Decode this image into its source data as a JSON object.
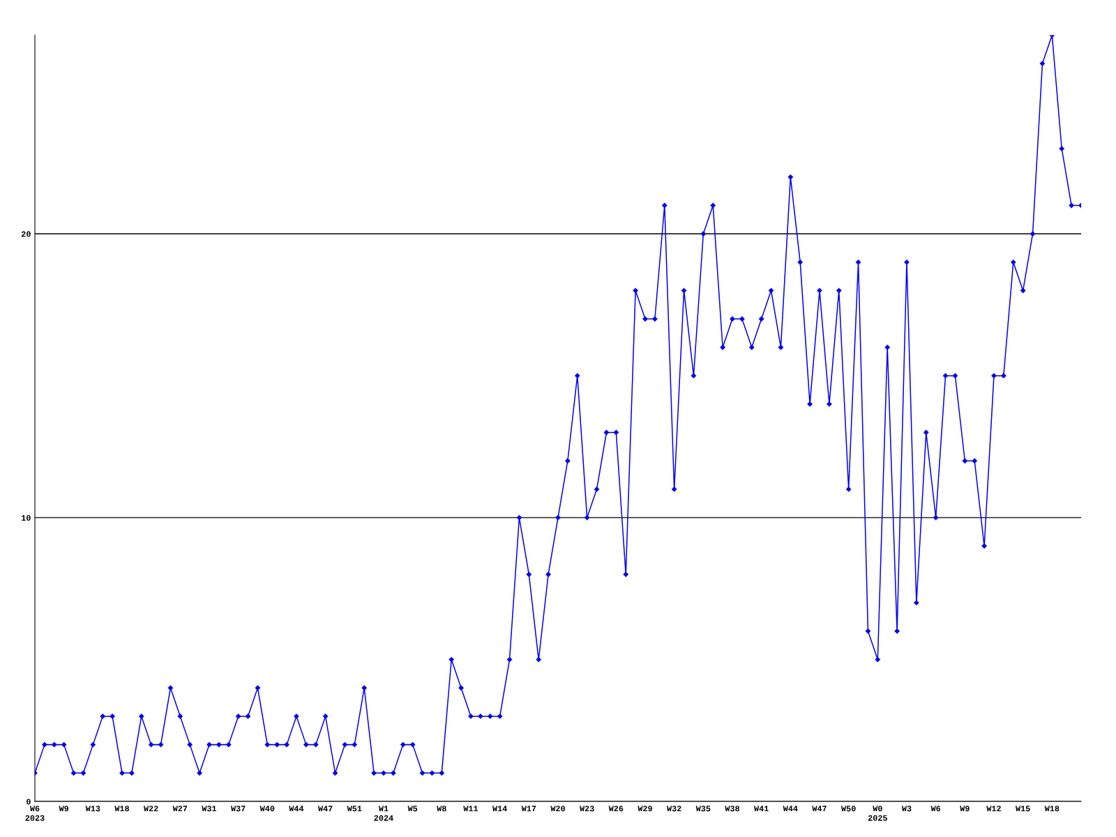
{
  "chart_data": {
    "type": "line",
    "categories": [
      "W6\n2023",
      null,
      null,
      "W9",
      null,
      null,
      "W13",
      null,
      null,
      "W18",
      null,
      null,
      "W22",
      null,
      null,
      "W27",
      null,
      null,
      "W31",
      null,
      null,
      "W37",
      null,
      null,
      "W40",
      null,
      null,
      "W44",
      null,
      null,
      "W47",
      null,
      null,
      "W51",
      null,
      null,
      "W1\n2024",
      null,
      null,
      "W5",
      null,
      null,
      "W8",
      null,
      null,
      "W11",
      null,
      null,
      "W14",
      null,
      null,
      "W17",
      null,
      null,
      "W20",
      null,
      null,
      "W23",
      null,
      null,
      "W26",
      null,
      null,
      "W29",
      null,
      null,
      "W32",
      null,
      null,
      "W35",
      null,
      null,
      "W38",
      null,
      null,
      "W41",
      null,
      null,
      "W44",
      null,
      null,
      "W47",
      null,
      null,
      "W50",
      null,
      null,
      "W0\n2025",
      null,
      null,
      "W3",
      null,
      null,
      "W6",
      null,
      null,
      "W9",
      null,
      null,
      "W12",
      null,
      null,
      "W15",
      null,
      null,
      "W18",
      null,
      null,
      null
    ],
    "series": [
      {
        "color": "#0000ff",
        "values": [
          1,
          2,
          2,
          2,
          1,
          1,
          2,
          3,
          3,
          1,
          1,
          3,
          2,
          2,
          4,
          3,
          2,
          1,
          2,
          2,
          2,
          3,
          3,
          4,
          2,
          2,
          2,
          3,
          2,
          2,
          3,
          1,
          2,
          2,
          4,
          1,
          1,
          1,
          2,
          2,
          1,
          1,
          1,
          5,
          4,
          3,
          3,
          3,
          3,
          5,
          10,
          8,
          5,
          8,
          10,
          12,
          15,
          10,
          11,
          13,
          13,
          8,
          18,
          17,
          17,
          21,
          11,
          18,
          15,
          20,
          21,
          16,
          17,
          17,
          16,
          17,
          18,
          16,
          22,
          19,
          14,
          18,
          14,
          18,
          11,
          19,
          6,
          5,
          16,
          6,
          19,
          7,
          13,
          10,
          15,
          15,
          12,
          12,
          9,
          15,
          15,
          19,
          18,
          20,
          26,
          27,
          23,
          21,
          21
        ]
      }
    ],
    "ylim": [
      0,
      27
    ],
    "yticks": [
      0,
      10,
      20
    ],
    "grid": "y",
    "marker": "diamond",
    "line_style": "solid"
  }
}
